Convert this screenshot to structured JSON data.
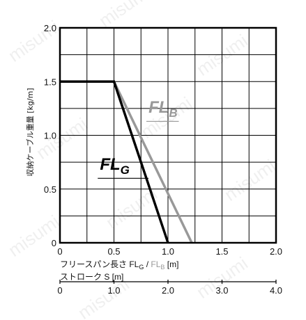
{
  "chart_data": {
    "type": "line",
    "ylabel": "収納ケーブル重量 [kg/m]",
    "xlabel_prefix": "フリースパン長さ ",
    "xlabel_fl": "FL",
    "xlabel_g": "G",
    "xlabel_slash": " / ",
    "xlabel_b": "B",
    "xlabel_unit": " [m]",
    "x2label": "ストローク S [m]",
    "xlim": [
      0,
      2.0
    ],
    "ylim": [
      0,
      2.0
    ],
    "x2lim": [
      0,
      4.0
    ],
    "x_ticks": [
      "0",
      "0.5",
      "1.0",
      "1.5",
      "2.0"
    ],
    "y_ticks": [
      "0",
      "0.5",
      "1.0",
      "1.5",
      "2.0"
    ],
    "x2_ticks": [
      "0",
      "1.0",
      "2.0",
      "3.0",
      "4.0"
    ],
    "grid": true,
    "watermark": "misumi",
    "series": [
      {
        "name": "FLG",
        "label_main": "FL",
        "label_sub": "G",
        "color": "#000000",
        "x": [
          0,
          0.5,
          1.0
        ],
        "y": [
          1.5,
          1.5,
          0
        ]
      },
      {
        "name": "FLB",
        "label_main": "FL",
        "label_sub": "B",
        "color": "#999999",
        "x": [
          0,
          0.5,
          1.22
        ],
        "y": [
          1.5,
          1.5,
          0
        ]
      }
    ]
  }
}
